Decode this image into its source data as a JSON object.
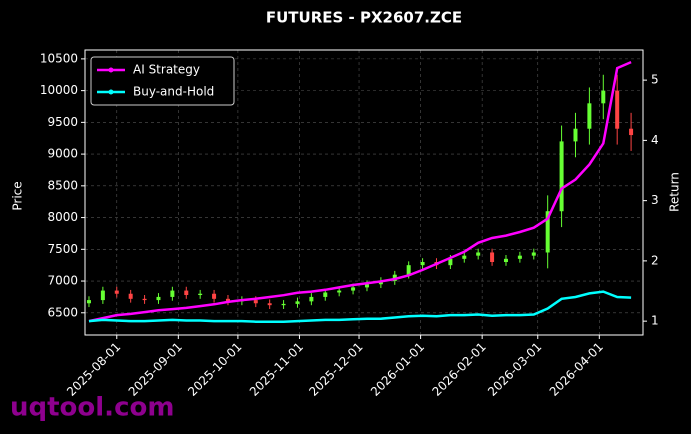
{
  "chart_data": {
    "type": "candlestick",
    "title": "FUTURES - PX2607.ZCE",
    "ylabel": "Price",
    "y2label": "Return",
    "x": [
      "2025-07-18",
      "2025-07-25",
      "2025-08-01",
      "2025-08-08",
      "2025-08-15",
      "2025-08-22",
      "2025-08-29",
      "2025-09-05",
      "2025-09-12",
      "2025-09-19",
      "2025-09-26",
      "2025-10-03",
      "2025-10-10",
      "2025-10-17",
      "2025-10-24",
      "2025-10-31",
      "2025-11-07",
      "2025-11-14",
      "2025-11-21",
      "2025-11-28",
      "2025-12-05",
      "2025-12-12",
      "2025-12-19",
      "2025-12-26",
      "2026-01-02",
      "2026-01-09",
      "2026-01-16",
      "2026-01-23",
      "2026-01-30",
      "2026-02-06",
      "2026-02-13",
      "2026-02-20",
      "2026-02-27",
      "2026-03-06",
      "2026-03-13",
      "2026-03-20",
      "2026-03-27",
      "2026-04-03",
      "2026-04-10",
      "2026-04-17"
    ],
    "open": [
      6650,
      6700,
      6850,
      6800,
      6720,
      6700,
      6750,
      6850,
      6780,
      6800,
      6720,
      6680,
      6700,
      6650,
      6620,
      6640,
      6680,
      6750,
      6820,
      6850,
      6900,
      6950,
      7000,
      7100,
      7250,
      7300,
      7250,
      7350,
      7400,
      7450,
      7300,
      7350,
      7400,
      7450,
      8100,
      9200,
      9400,
      9800,
      10000,
      9400
    ],
    "high": [
      6760,
      6910,
      6910,
      6860,
      6780,
      6810,
      6910,
      6910,
      6860,
      6860,
      6780,
      6760,
      6760,
      6710,
      6700,
      6740,
      6810,
      6880,
      6910,
      6960,
      7010,
      7060,
      7160,
      7310,
      7360,
      7360,
      7410,
      7460,
      7510,
      7510,
      7410,
      7460,
      7510,
      8350,
      9450,
      9650,
      10050,
      10250,
      10250,
      9650
    ],
    "low": [
      6590,
      6640,
      6740,
      6660,
      6640,
      6640,
      6690,
      6720,
      6720,
      6660,
      6620,
      6620,
      6590,
      6560,
      6560,
      6580,
      6620,
      6690,
      6760,
      6790,
      6840,
      6890,
      6940,
      7040,
      7190,
      7190,
      7190,
      7290,
      7340,
      7240,
      7240,
      7290,
      7340,
      7200,
      7850,
      8950,
      9150,
      9550,
      9150,
      9050
    ],
    "close": [
      6700,
      6850,
      6800,
      6720,
      6700,
      6750,
      6850,
      6780,
      6800,
      6720,
      6680,
      6700,
      6650,
      6620,
      6640,
      6680,
      6750,
      6820,
      6850,
      6900,
      6950,
      7000,
      7100,
      7250,
      7300,
      7250,
      7350,
      7400,
      7450,
      7300,
      7350,
      7400,
      7450,
      8100,
      9200,
      9400,
      9800,
      10000,
      9400,
      9300
    ],
    "up_color": "#66ff33",
    "down_color": "#ff4444",
    "series": [
      {
        "name": "AI Strategy",
        "color": "#ff00ff",
        "axis": "y2",
        "values": [
          1.0,
          1.05,
          1.1,
          1.12,
          1.15,
          1.18,
          1.2,
          1.22,
          1.25,
          1.28,
          1.32,
          1.35,
          1.37,
          1.4,
          1.43,
          1.47,
          1.49,
          1.52,
          1.56,
          1.6,
          1.63,
          1.66,
          1.7,
          1.76,
          1.85,
          1.95,
          2.05,
          2.15,
          2.3,
          2.38,
          2.42,
          2.48,
          2.55,
          2.7,
          3.2,
          3.35,
          3.6,
          3.95,
          5.2,
          5.3
        ]
      },
      {
        "name": "Buy-and-Hold",
        "color": "#00ffff",
        "axis": "y2",
        "values": [
          1.0,
          1.02,
          1.01,
          1.0,
          1.0,
          1.01,
          1.02,
          1.01,
          1.01,
          1.0,
          1.0,
          1.0,
          0.99,
          0.99,
          0.99,
          1.0,
          1.01,
          1.02,
          1.02,
          1.03,
          1.04,
          1.04,
          1.06,
          1.08,
          1.09,
          1.08,
          1.1,
          1.1,
          1.11,
          1.09,
          1.1,
          1.1,
          1.11,
          1.21,
          1.37,
          1.4,
          1.46,
          1.49,
          1.4,
          1.39
        ]
      }
    ],
    "xlim": [
      "2025-07-16",
      "2026-04-23"
    ],
    "xticks": [
      "2025-08-01",
      "2025-09-01",
      "2025-10-01",
      "2025-11-01",
      "2025-12-01",
      "2026-01-01",
      "2026-02-01",
      "2026-03-01",
      "2026-04-01"
    ],
    "ylim": [
      6150,
      10640
    ],
    "yticks": [
      6500,
      7000,
      7500,
      8000,
      8500,
      9000,
      9500,
      10000,
      10500
    ],
    "y2lim": [
      0.77,
      5.5
    ],
    "y2ticks": [
      1,
      2,
      3,
      4,
      5
    ],
    "grid": true,
    "legend": "upper left"
  },
  "watermark": "uqtool.com"
}
